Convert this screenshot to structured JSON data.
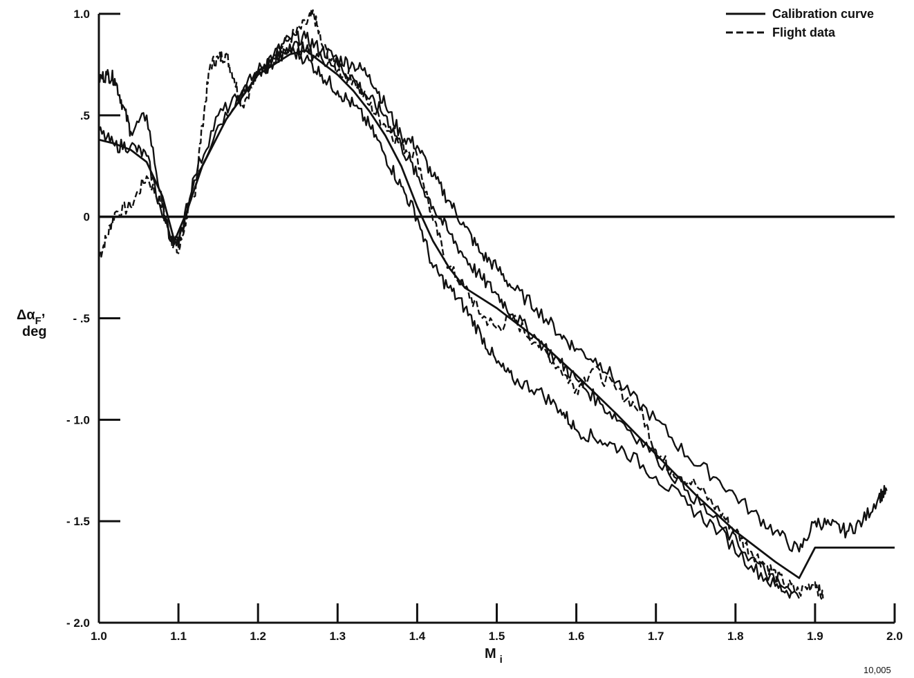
{
  "chart_data": {
    "type": "line",
    "title": "",
    "xlabel_main": "M",
    "xlabel_sub": "i",
    "ylabel_line1_main": "Δα",
    "ylabel_line1_sub": "F",
    "ylabel_line1_suffix": ",",
    "ylabel_line2": "deg",
    "xlim": [
      1.0,
      2.0
    ],
    "ylim": [
      -2.0,
      1.0
    ],
    "x_ticks": [
      1.0,
      1.1,
      1.2,
      1.3,
      1.4,
      1.5,
      1.6,
      1.7,
      1.8,
      1.9,
      2.0
    ],
    "x_tick_labels": [
      "1.0",
      "1.1",
      "1.2",
      "1.3",
      "1.4",
      "1.5",
      "1.6",
      "1.7",
      "1.8",
      "1.9",
      "2.0"
    ],
    "y_ticks": [
      1.0,
      0.5,
      0,
      -0.5,
      -1.0,
      -1.5,
      -2.0
    ],
    "y_tick_labels": [
      "1.0",
      ".5",
      "0",
      "- .5",
      "- 1.0",
      "- 1.5",
      "- 2.0"
    ],
    "grid": false,
    "legend_position": "top-right",
    "zero_line": true,
    "figure_number": "10,005",
    "series": [
      {
        "name": "Calibration curve",
        "style": "solid",
        "x": [
          1.0,
          1.02,
          1.04,
          1.06,
          1.08,
          1.095,
          1.11,
          1.13,
          1.16,
          1.2,
          1.24,
          1.26,
          1.28,
          1.3,
          1.32,
          1.34,
          1.36,
          1.38,
          1.4,
          1.42,
          1.44,
          1.46,
          1.5,
          1.55,
          1.6,
          1.65,
          1.7,
          1.75,
          1.8,
          1.85,
          1.88,
          1.9,
          1.95,
          2.0
        ],
        "y": [
          0.38,
          0.36,
          0.33,
          0.27,
          0.1,
          -0.12,
          0.02,
          0.25,
          0.48,
          0.7,
          0.8,
          0.82,
          0.76,
          0.7,
          0.62,
          0.52,
          0.4,
          0.25,
          0.05,
          -0.12,
          -0.25,
          -0.35,
          -0.45,
          -0.6,
          -0.78,
          -0.97,
          -1.17,
          -1.37,
          -1.55,
          -1.7,
          -1.78,
          -1.63,
          -1.63,
          -1.63
        ]
      },
      {
        "name": "Flight data",
        "style": "dashed",
        "x": [
          1.0,
          1.01,
          1.02,
          1.04,
          1.06,
          1.08,
          1.09,
          1.1,
          1.11,
          1.12,
          1.13,
          1.14,
          1.15,
          1.16,
          1.17,
          1.18,
          1.2,
          1.22,
          1.24,
          1.26,
          1.27,
          1.28,
          1.3,
          1.32,
          1.34,
          1.36,
          1.38,
          1.4,
          1.42,
          1.44,
          1.46,
          1.48,
          1.5,
          1.52,
          1.55,
          1.58,
          1.6,
          1.62,
          1.65,
          1.68,
          1.7,
          1.72,
          1.75,
          1.78,
          1.8,
          1.82,
          1.84,
          1.86,
          1.88,
          1.9,
          1.91
        ],
        "y": [
          -0.2,
          -0.1,
          0.02,
          0.05,
          0.2,
          0.05,
          -0.1,
          -0.18,
          0.0,
          0.1,
          0.45,
          0.75,
          0.78,
          0.8,
          0.68,
          0.55,
          0.7,
          0.8,
          0.88,
          0.95,
          1.0,
          0.85,
          0.72,
          0.68,
          0.55,
          0.45,
          0.35,
          0.3,
          -0.02,
          -0.25,
          -0.35,
          -0.48,
          -0.55,
          -0.5,
          -0.62,
          -0.75,
          -0.85,
          -0.75,
          -0.85,
          -0.95,
          -1.15,
          -1.25,
          -1.32,
          -1.45,
          -1.55,
          -1.65,
          -1.72,
          -1.8,
          -1.85,
          -1.8,
          -1.88
        ]
      },
      {
        "name": "",
        "style": "solid",
        "x": [
          1.0,
          1.01,
          1.02,
          1.03,
          1.04,
          1.06,
          1.08,
          1.09,
          1.1,
          1.12,
          1.15,
          1.18,
          1.2,
          1.22,
          1.24,
          1.26,
          1.28,
          1.3,
          1.32,
          1.34,
          1.36,
          1.38,
          1.4,
          1.42,
          1.44,
          1.46,
          1.48,
          1.5,
          1.52,
          1.55,
          1.58,
          1.6,
          1.63,
          1.66,
          1.7,
          1.74,
          1.78,
          1.82,
          1.85,
          1.88,
          1.9,
          1.92,
          1.94,
          1.96,
          1.98,
          1.99
        ],
        "y": [
          0.68,
          0.7,
          0.68,
          0.55,
          0.42,
          0.5,
          0.05,
          -0.12,
          -0.12,
          0.18,
          0.45,
          0.62,
          0.72,
          0.8,
          0.88,
          0.88,
          0.82,
          0.78,
          0.75,
          0.7,
          0.55,
          0.4,
          0.35,
          0.2,
          0.08,
          -0.05,
          -0.18,
          -0.25,
          -0.35,
          -0.45,
          -0.58,
          -0.65,
          -0.72,
          -0.85,
          -1.0,
          -1.18,
          -1.3,
          -1.45,
          -1.55,
          -1.65,
          -1.5,
          -1.52,
          -1.55,
          -1.5,
          -1.38,
          -1.35
        ]
      },
      {
        "name": "",
        "style": "solid",
        "x": [
          1.0,
          1.02,
          1.04,
          1.06,
          1.08,
          1.1,
          1.12,
          1.15,
          1.18,
          1.2,
          1.22,
          1.24,
          1.26,
          1.28,
          1.3,
          1.32,
          1.34,
          1.36,
          1.38,
          1.4,
          1.42,
          1.44,
          1.46,
          1.48,
          1.5,
          1.52,
          1.55,
          1.58,
          1.6,
          1.63,
          1.66,
          1.7,
          1.74,
          1.78,
          1.82,
          1.85,
          1.87
        ],
        "y": [
          0.42,
          0.35,
          0.35,
          0.3,
          0.0,
          -0.15,
          0.2,
          0.5,
          0.6,
          0.7,
          0.76,
          0.82,
          0.78,
          0.7,
          0.62,
          0.55,
          0.45,
          0.3,
          0.15,
          0.0,
          -0.25,
          -0.35,
          -0.45,
          -0.58,
          -0.72,
          -0.8,
          -0.85,
          -0.95,
          -1.05,
          -1.1,
          -1.15,
          -1.28,
          -1.42,
          -1.55,
          -1.72,
          -1.82,
          -1.85
        ]
      },
      {
        "name": "",
        "style": "solid",
        "x": [
          1.2,
          1.22,
          1.24,
          1.26,
          1.28,
          1.3,
          1.32,
          1.34,
          1.36,
          1.38,
          1.4,
          1.42,
          1.44,
          1.46,
          1.48,
          1.5,
          1.52,
          1.55,
          1.58,
          1.6,
          1.63,
          1.66,
          1.7,
          1.74,
          1.78,
          1.82,
          1.85,
          1.88
        ],
        "y": [
          0.7,
          0.78,
          0.85,
          0.82,
          0.78,
          0.75,
          0.68,
          0.58,
          0.5,
          0.35,
          0.2,
          0.05,
          -0.08,
          -0.2,
          -0.3,
          -0.38,
          -0.48,
          -0.6,
          -0.72,
          -0.8,
          -0.92,
          -1.02,
          -1.18,
          -1.35,
          -1.52,
          -1.68,
          -1.8,
          -1.88
        ]
      }
    ]
  }
}
